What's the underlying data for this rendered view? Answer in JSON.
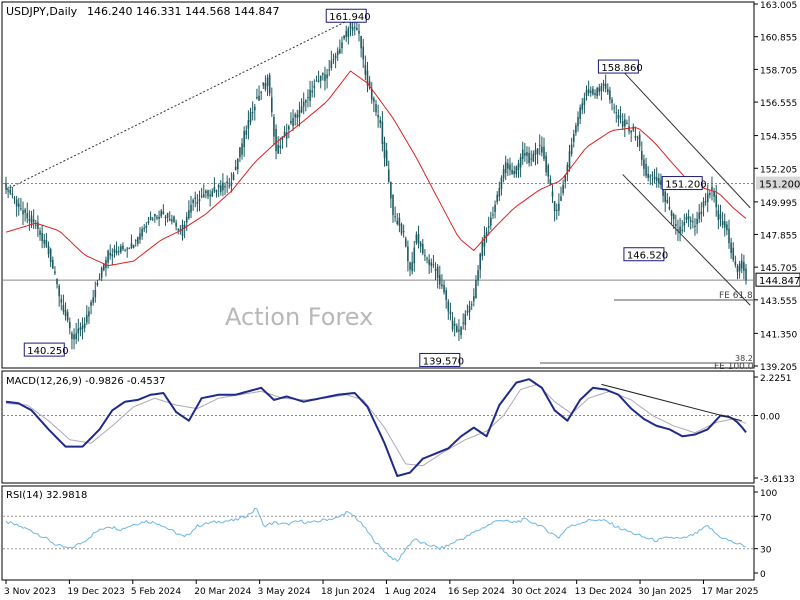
{
  "header": {
    "symbol": "USDJPY,Daily",
    "ohlc": "146.240 146.331 144.568 144.847"
  },
  "watermark": "Action Forex",
  "colors": {
    "candle": "#1d5a5f",
    "ema": "#e02020",
    "macd": "#1f2a8c",
    "signal": "#b0a8b8",
    "rsi": "#6fb6e6",
    "label_border": "#1a1a7a",
    "grid_dotted": "#888888"
  },
  "chart_data": [
    {
      "type": "candlestick",
      "panel": "price",
      "title": "USDJPY,Daily",
      "ylim": [
        139.205,
        163.005
      ],
      "y_ticks": [
        "163.005",
        "160.855",
        "158.705",
        "156.555",
        "154.355",
        "152.205",
        "149.995",
        "147.855",
        "145.705",
        "143.555",
        "141.350",
        "139.205"
      ],
      "x_ticks": [
        "3 Nov 2023",
        "19 Dec 2023",
        "5 Feb 2024",
        "20 Mar 2024",
        "3 May 2024",
        "18 Jun 2024",
        "1 Aug 2024",
        "16 Sep 2024",
        "30 Oct 2024",
        "13 Dec 2024",
        "30 Jan 2025",
        "17 Mar 2025"
      ],
      "close_path": [
        [
          0,
          151.0
        ],
        [
          3,
          150.3
        ],
        [
          8,
          149.2
        ],
        [
          14,
          148.4
        ],
        [
          20,
          146.8
        ],
        [
          25,
          143.9
        ],
        [
          31,
          141.0
        ],
        [
          37,
          141.9
        ],
        [
          42,
          144.4
        ],
        [
          48,
          146.6
        ],
        [
          54,
          146.9
        ],
        [
          60,
          147.3
        ],
        [
          67,
          148.9
        ],
        [
          73,
          149.3
        ],
        [
          78,
          148.9
        ],
        [
          82,
          148.0
        ],
        [
          88,
          150.0
        ],
        [
          94,
          150.5
        ],
        [
          100,
          150.9
        ],
        [
          106,
          151.3
        ],
        [
          112,
          154.4
        ],
        [
          117,
          156.5
        ],
        [
          123,
          158.2
        ],
        [
          127,
          153.3
        ],
        [
          133,
          155.0
        ],
        [
          139,
          156.1
        ],
        [
          145,
          157.7
        ],
        [
          151,
          158.5
        ],
        [
          157,
          160.2
        ],
        [
          162,
          161.7
        ],
        [
          166,
          160.9
        ],
        [
          170,
          157.7
        ],
        [
          176,
          155.0
        ],
        [
          182,
          149.3
        ],
        [
          187,
          147.8
        ],
        [
          190,
          145.4
        ],
        [
          193,
          147.8
        ],
        [
          197,
          146.3
        ],
        [
          202,
          145.5
        ],
        [
          207,
          143.5
        ],
        [
          210,
          141.8
        ],
        [
          213,
          141.4
        ],
        [
          216,
          142.5
        ],
        [
          220,
          143.8
        ],
        [
          224,
          147.3
        ],
        [
          229,
          149.3
        ],
        [
          235,
          152.6
        ],
        [
          239,
          151.7
        ],
        [
          243,
          153.3
        ],
        [
          247,
          152.6
        ],
        [
          251,
          153.9
        ],
        [
          255,
          151.6
        ],
        [
          258,
          149.4
        ],
        [
          261,
          150.3
        ],
        [
          265,
          153.3
        ],
        [
          269,
          155.6
        ],
        [
          273,
          157.4
        ],
        [
          277,
          157.1
        ],
        [
          281,
          157.9
        ],
        [
          285,
          156.3
        ],
        [
          289,
          155.3
        ],
        [
          293,
          154.8
        ],
        [
          297,
          154.2
        ],
        [
          301,
          151.6
        ],
        [
          305,
          151.7
        ],
        [
          309,
          150.6
        ],
        [
          313,
          148.9
        ],
        [
          317,
          147.9
        ],
        [
          320,
          148.9
        ],
        [
          324,
          148.4
        ],
        [
          328,
          149.8
        ],
        [
          332,
          150.8
        ],
        [
          335,
          148.9
        ],
        [
          339,
          148.1
        ],
        [
          342,
          146.1
        ],
        [
          344,
          145.4
        ],
        [
          346,
          146.2
        ],
        [
          348,
          144.85
        ]
      ],
      "ema_path": [
        [
          0,
          148.0
        ],
        [
          14,
          148.6
        ],
        [
          25,
          148.1
        ],
        [
          37,
          146.5
        ],
        [
          48,
          145.8
        ],
        [
          60,
          146.1
        ],
        [
          73,
          147.5
        ],
        [
          82,
          148.1
        ],
        [
          94,
          149.2
        ],
        [
          106,
          150.7
        ],
        [
          117,
          152.6
        ],
        [
          127,
          153.9
        ],
        [
          139,
          155.2
        ],
        [
          151,
          156.6
        ],
        [
          162,
          158.6
        ],
        [
          170,
          157.8
        ],
        [
          182,
          155.5
        ],
        [
          193,
          152.9
        ],
        [
          202,
          150.5
        ],
        [
          213,
          147.6
        ],
        [
          220,
          146.8
        ],
        [
          229,
          148.2
        ],
        [
          239,
          149.6
        ],
        [
          251,
          150.8
        ],
        [
          261,
          151.4
        ],
        [
          273,
          153.6
        ],
        [
          285,
          154.7
        ],
        [
          297,
          154.9
        ],
        [
          305,
          153.9
        ],
        [
          313,
          152.6
        ],
        [
          320,
          151.5
        ],
        [
          328,
          150.9
        ],
        [
          335,
          150.6
        ],
        [
          342,
          149.6
        ],
        [
          348,
          148.9
        ]
      ],
      "annotations": [
        {
          "text": "161.940",
          "x": 160,
          "y": 162.2
        },
        {
          "text": "158.860",
          "x": 288,
          "y": 158.86
        },
        {
          "text": "151.200",
          "x": 318,
          "y": 151.2
        },
        {
          "text": "146.520",
          "x": 300,
          "y": 146.52
        },
        {
          "text": "140.250",
          "x": 18,
          "y": 140.25
        },
        {
          "text": "139.570",
          "x": 204,
          "y": 139.57
        }
      ],
      "levels": [
        {
          "label": "151.200",
          "value": 151.2
        },
        {
          "label": "144.847",
          "value": 144.847
        }
      ],
      "fe_labels": [
        "FE 61.8",
        "38.2",
        "FE 100.0"
      ],
      "trendlines": [
        {
          "from": [
            0,
            150.8
          ],
          "to": [
            162,
            162.0
          ]
        },
        {
          "from": [
            288,
            158.9
          ],
          "to": [
            350,
            149.6
          ]
        },
        {
          "from": [
            290,
            151.8
          ],
          "to": [
            350,
            143.2
          ]
        }
      ]
    },
    {
      "type": "line",
      "panel": "macd",
      "title": "MACD(12,26,9) -0.9826 -0.4537",
      "ylim": [
        -3.6133,
        2.2251
      ],
      "y_ticks": [
        "2.2251",
        "0.00",
        "-3.6133"
      ],
      "series": [
        {
          "name": "MACD",
          "values": [
            [
              0,
              0.8
            ],
            [
              6,
              0.7
            ],
            [
              12,
              0.3
            ],
            [
              20,
              -0.8
            ],
            [
              28,
              -1.8
            ],
            [
              36,
              -1.8
            ],
            [
              44,
              -0.8
            ],
            [
              50,
              0.3
            ],
            [
              56,
              0.8
            ],
            [
              62,
              0.9
            ],
            [
              68,
              1.2
            ],
            [
              74,
              1.3
            ],
            [
              80,
              0.2
            ],
            [
              86,
              -0.3
            ],
            [
              92,
              1.0
            ],
            [
              100,
              1.2
            ],
            [
              108,
              1.2
            ],
            [
              114,
              1.4
            ],
            [
              120,
              1.6
            ],
            [
              126,
              0.9
            ],
            [
              132,
              1.1
            ],
            [
              140,
              0.8
            ],
            [
              148,
              1.0
            ],
            [
              156,
              1.2
            ],
            [
              164,
              1.3
            ],
            [
              170,
              0.5
            ],
            [
              178,
              -1.6
            ],
            [
              184,
              -3.5
            ],
            [
              190,
              -3.3
            ],
            [
              196,
              -2.5
            ],
            [
              202,
              -2.2
            ],
            [
              208,
              -1.9
            ],
            [
              214,
              -1.2
            ],
            [
              220,
              -0.7
            ],
            [
              226,
              -1.2
            ],
            [
              232,
              0.6
            ],
            [
              240,
              1.9
            ],
            [
              246,
              2.1
            ],
            [
              252,
              1.6
            ],
            [
              258,
              0.3
            ],
            [
              264,
              -0.3
            ],
            [
              270,
              0.9
            ],
            [
              276,
              1.6
            ],
            [
              282,
              1.5
            ],
            [
              288,
              1.2
            ],
            [
              294,
              0.4
            ],
            [
              300,
              -0.2
            ],
            [
              306,
              -0.6
            ],
            [
              312,
              -0.8
            ],
            [
              318,
              -1.2
            ],
            [
              324,
              -1.1
            ],
            [
              330,
              -0.8
            ],
            [
              336,
              0.0
            ],
            [
              341,
              -0.1
            ],
            [
              345,
              -0.5
            ],
            [
              348,
              -0.98
            ]
          ]
        },
        {
          "name": "Signal",
          "values": [
            [
              0,
              0.7
            ],
            [
              10,
              0.6
            ],
            [
              20,
              -0.3
            ],
            [
              30,
              -1.4
            ],
            [
              40,
              -1.6
            ],
            [
              50,
              -0.6
            ],
            [
              60,
              0.5
            ],
            [
              70,
              1.0
            ],
            [
              80,
              0.6
            ],
            [
              90,
              0.4
            ],
            [
              100,
              1.0
            ],
            [
              110,
              1.2
            ],
            [
              120,
              1.4
            ],
            [
              130,
              1.0
            ],
            [
              140,
              0.9
            ],
            [
              150,
              1.0
            ],
            [
              160,
              1.2
            ],
            [
              168,
              0.9
            ],
            [
              178,
              -0.7
            ],
            [
              188,
              -2.8
            ],
            [
              196,
              -2.9
            ],
            [
              206,
              -2.1
            ],
            [
              216,
              -1.4
            ],
            [
              226,
              -0.9
            ],
            [
              234,
              0.0
            ],
            [
              242,
              1.5
            ],
            [
              250,
              1.8
            ],
            [
              258,
              0.8
            ],
            [
              266,
              0.1
            ],
            [
              274,
              1.0
            ],
            [
              284,
              1.4
            ],
            [
              294,
              0.9
            ],
            [
              304,
              0.0
            ],
            [
              314,
              -0.6
            ],
            [
              324,
              -1.0
            ],
            [
              334,
              -0.4
            ],
            [
              342,
              -0.2
            ],
            [
              348,
              -0.45
            ]
          ]
        }
      ],
      "trendline": {
        "from": [
          280,
          1.8
        ],
        "to": [
          346,
          -0.3
        ]
      }
    },
    {
      "type": "line",
      "panel": "rsi",
      "title": "RSI(14) 32.9818",
      "ylim": [
        0,
        100
      ],
      "y_ticks": [
        "100",
        "70",
        "30",
        "0"
      ],
      "levels": [
        70,
        30
      ],
      "series": [
        {
          "name": "RSI",
          "values": [
            [
              0,
              63
            ],
            [
              6,
              58
            ],
            [
              12,
              52
            ],
            [
              18,
              44
            ],
            [
              24,
              34
            ],
            [
              30,
              30
            ],
            [
              36,
              38
            ],
            [
              42,
              50
            ],
            [
              48,
              58
            ],
            [
              54,
              54
            ],
            [
              60,
              60
            ],
            [
              66,
              64
            ],
            [
              72,
              61
            ],
            [
              78,
              52
            ],
            [
              84,
              44
            ],
            [
              90,
              58
            ],
            [
              96,
              62
            ],
            [
              102,
              64
            ],
            [
              108,
              65
            ],
            [
              114,
              72
            ],
            [
              118,
              80
            ],
            [
              121,
              58
            ],
            [
              126,
              62
            ],
            [
              132,
              60
            ],
            [
              138,
              64
            ],
            [
              144,
              62
            ],
            [
              150,
              66
            ],
            [
              156,
              68
            ],
            [
              160,
              75
            ],
            [
              164,
              70
            ],
            [
              168,
              58
            ],
            [
              172,
              44
            ],
            [
              176,
              32
            ],
            [
              180,
              22
            ],
            [
              184,
              14
            ],
            [
              188,
              30
            ],
            [
              192,
              42
            ],
            [
              196,
              36
            ],
            [
              200,
              34
            ],
            [
              204,
              30
            ],
            [
              208,
              34
            ],
            [
              212,
              40
            ],
            [
              216,
              44
            ],
            [
              220,
              50
            ],
            [
              226,
              58
            ],
            [
              232,
              66
            ],
            [
              238,
              62
            ],
            [
              244,
              66
            ],
            [
              250,
              60
            ],
            [
              256,
              50
            ],
            [
              260,
              44
            ],
            [
              264,
              56
            ],
            [
              270,
              62
            ],
            [
              276,
              66
            ],
            [
              282,
              64
            ],
            [
              288,
              56
            ],
            [
              294,
              50
            ],
            [
              300,
              44
            ],
            [
              306,
              40
            ],
            [
              312,
              44
            ],
            [
              318,
              42
            ],
            [
              324,
              48
            ],
            [
              330,
              58
            ],
            [
              335,
              46
            ],
            [
              340,
              40
            ],
            [
              344,
              36
            ],
            [
              348,
              33
            ]
          ]
        }
      ]
    }
  ]
}
